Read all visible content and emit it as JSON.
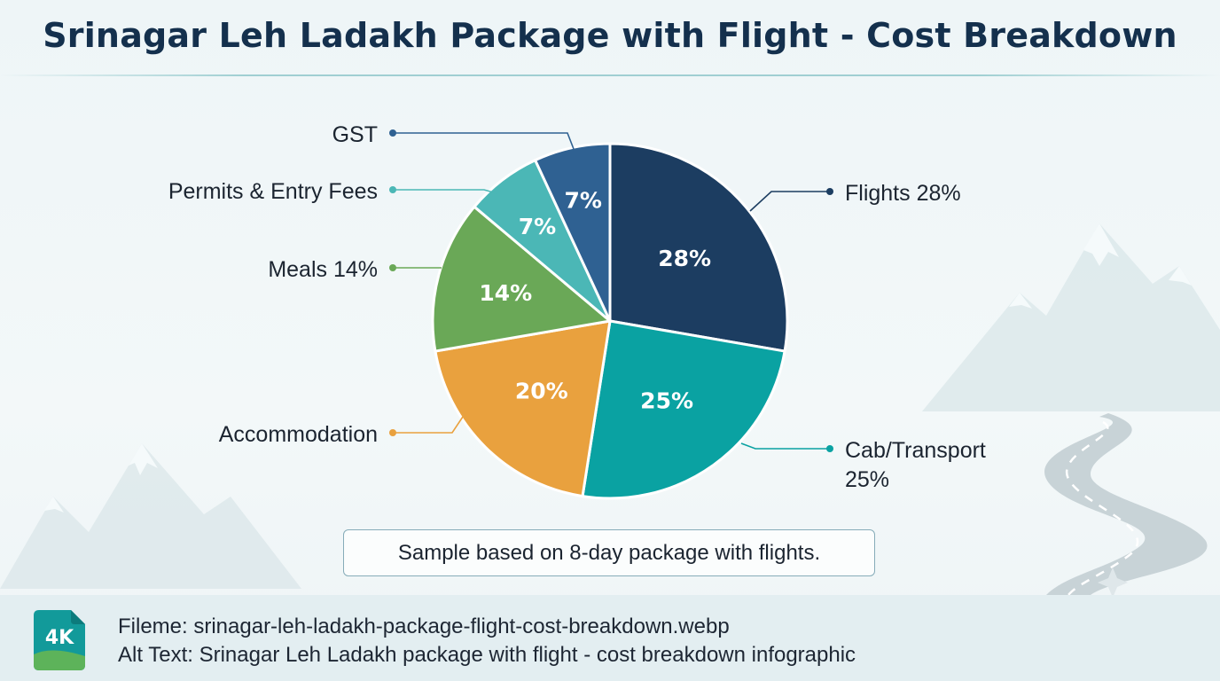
{
  "header": {
    "title": "Srinagar Leh Ladakh Package with Flight - Cost Breakdown"
  },
  "chart_data": {
    "type": "pie",
    "title": "Srinagar Leh Ladakh Package with Flight - Cost Breakdown",
    "start_angle_deg": 0,
    "direction": "clockwise",
    "slices": [
      {
        "label": "Flights 28%",
        "value": 28,
        "value_label": "28%",
        "color": "#1c3d61"
      },
      {
        "label": "Cab/Transport 25%",
        "value": 25,
        "value_label": "25%",
        "color": "#0aa2a2"
      },
      {
        "label": "Accommodation",
        "value": 20,
        "value_label": "20%",
        "color": "#e9a13e"
      },
      {
        "label": "Meals 14%",
        "value": 14,
        "value_label": "14%",
        "color": "#6aa857"
      },
      {
        "label": "Permits & Entry Fees",
        "value": 7,
        "value_label": "7%",
        "color": "#4bb7b6"
      },
      {
        "label": "GST",
        "value": 7,
        "value_label": "7%",
        "color": "#2f6192"
      }
    ]
  },
  "note": "Sample based on 8-day package with flights.",
  "footer": {
    "badge": "4K",
    "filename": "Fileme: srinagar-leh-ladakh-package-flight-cost-breakdown.webp",
    "alt_text": "Alt Text: Srinagar Leh Ladakh package with flight - cost breakdown infographic"
  }
}
